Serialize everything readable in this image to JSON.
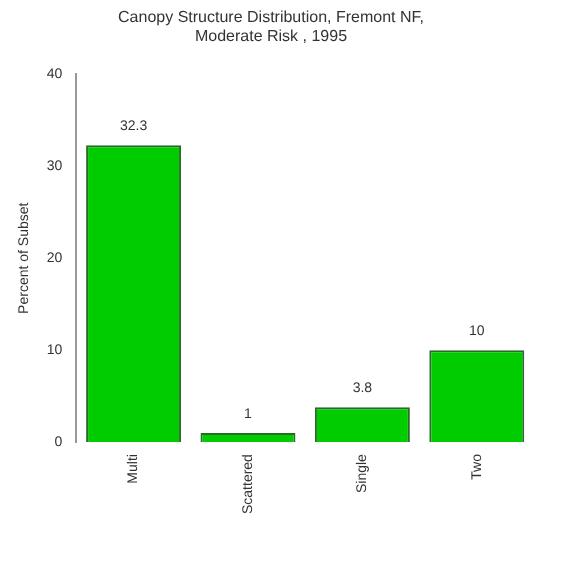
{
  "chart_data": {
    "type": "bar",
    "title": "Canopy Structure Distribution, Fremont NF,\nModerate Risk , 1995",
    "ylabel": "Percent of Subset",
    "categories": [
      "Multi",
      "Scattered",
      "Single",
      "Two"
    ],
    "values": [
      32.3,
      1,
      3.8,
      10
    ],
    "color": "#00cc00",
    "ylim": [
      0,
      40
    ],
    "yticks": [
      0,
      10,
      20,
      30,
      40
    ],
    "grid": false,
    "data_labels": true
  }
}
